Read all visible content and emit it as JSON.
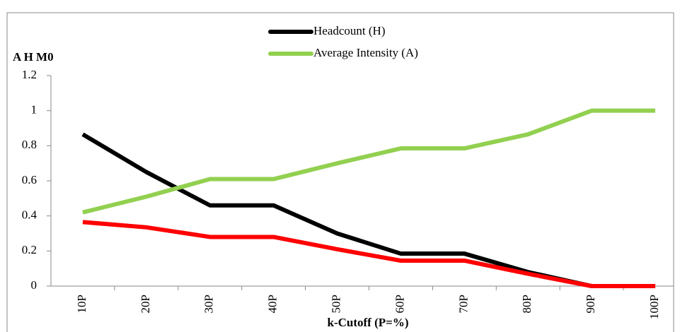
{
  "chart_data": {
    "type": "line",
    "y_label": "A H M0",
    "x_label": "k-Cutoff (P=%)",
    "categories": [
      "10P",
      "20P",
      "30P",
      "40P",
      "50P",
      "60P",
      "70P",
      "80P",
      "90P",
      "100P"
    ],
    "series": [
      {
        "name": "Headcount (H)",
        "color": "#000000",
        "values": [
          0.865,
          0.65,
          0.46,
          0.46,
          0.3,
          0.185,
          0.185,
          0.08,
          0,
          0
        ]
      },
      {
        "name": "Average Intensity (A)",
        "color": "#92d050",
        "values": [
          0.42,
          0.51,
          0.61,
          0.61,
          0.7,
          0.785,
          0.785,
          0.865,
          1,
          1
        ]
      },
      {
        "color": "#ff0000",
        "values": [
          0.365,
          0.335,
          0.28,
          0.28,
          0.21,
          0.145,
          0.145,
          0.07,
          0,
          0
        ]
      }
    ],
    "ylim": [
      0,
      1.2
    ],
    "yticks": [
      0,
      0.2,
      0.4,
      0.6,
      0.8,
      1,
      1.2
    ],
    "grid": false
  }
}
